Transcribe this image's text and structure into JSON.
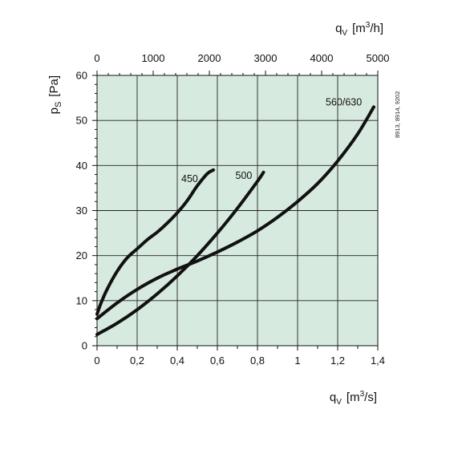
{
  "chart_data": {
    "type": "line",
    "title": "",
    "background_color": "#d7eadf",
    "grid": true,
    "xlabel": {
      "base": "q",
      "sub": "V",
      "unit_pre": "[m",
      "sup": "3",
      "unit_post": "/s]"
    },
    "x2label": {
      "base": "q",
      "sub": "V",
      "unit_pre": "[m",
      "sup": "3",
      "unit_post": "/h]"
    },
    "ylabel": {
      "base": "p",
      "sub": "S",
      "unit": "[Pa]"
    },
    "xlim": [
      0,
      1.4
    ],
    "ylim": [
      0,
      60
    ],
    "x2lim": [
      0,
      5000
    ],
    "x_ticks": [
      "0",
      "0,2",
      "0,4",
      "0,6",
      "0,8",
      "1",
      "1,2",
      "1,4"
    ],
    "x2_ticks": [
      "0",
      "1000",
      "2000",
      "3000",
      "4000",
      "5000"
    ],
    "y_ticks": [
      "0",
      "10",
      "20",
      "30",
      "40",
      "50",
      "60"
    ],
    "note": "8913, 8914, 9202",
    "series": [
      {
        "name": "450",
        "x": [
          0,
          0.02,
          0.05,
          0.1,
          0.15,
          0.2,
          0.25,
          0.3,
          0.35,
          0.4,
          0.45,
          0.5,
          0.55,
          0.58
        ],
        "y": [
          7,
          9.5,
          12.5,
          16.5,
          19.5,
          21.5,
          23.5,
          25.2,
          27.2,
          29.5,
          32.2,
          35.5,
          38.2,
          39
        ]
      },
      {
        "name": "500",
        "x": [
          0,
          0.1,
          0.2,
          0.3,
          0.4,
          0.5,
          0.6,
          0.7,
          0.8,
          0.83
        ],
        "y": [
          2.5,
          5,
          8,
          11.5,
          15.5,
          20,
          25,
          30.5,
          36.5,
          38.5
        ]
      },
      {
        "name": "560/630",
        "x": [
          0,
          0.1,
          0.2,
          0.3,
          0.4,
          0.5,
          0.6,
          0.7,
          0.8,
          0.9,
          1.0,
          1.1,
          1.2,
          1.3,
          1.38
        ],
        "y": [
          6,
          9.5,
          12.5,
          15,
          17,
          18.8,
          20.8,
          23,
          25.5,
          28.5,
          32,
          36,
          41,
          47,
          53
        ]
      }
    ]
  }
}
